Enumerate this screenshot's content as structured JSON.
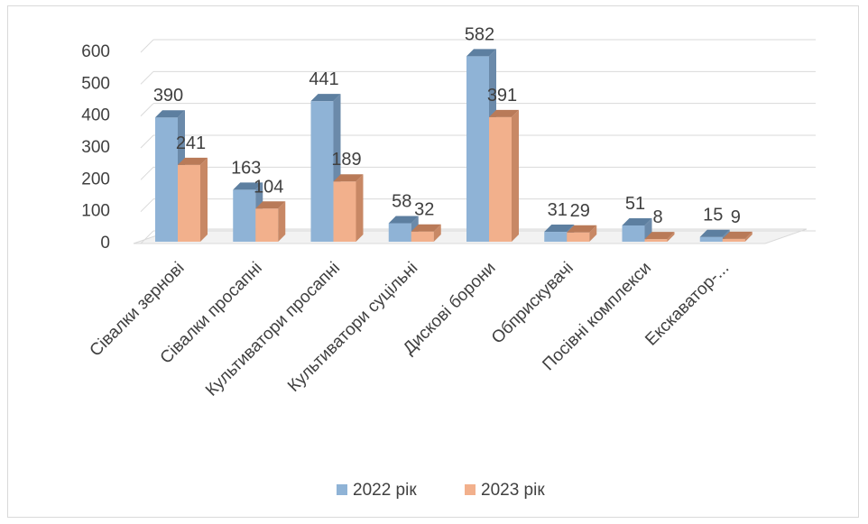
{
  "chart_data": {
    "type": "bar",
    "style": "3d-clustered-column",
    "categories": [
      "Сівалки зернові",
      "Сівалки просапні",
      "Культиватори просапні",
      "Культиватори суцільні",
      "Дискові борони",
      "Обприскувачі",
      "Посівні комплекси",
      "Екскаватор-..."
    ],
    "series": [
      {
        "name": "2022 рік",
        "values": [
          390,
          163,
          441,
          58,
          582,
          31,
          51,
          15
        ],
        "color": "#8fb3d6",
        "side_color": "#6b8aaa",
        "top_color": "#5d7fa0"
      },
      {
        "name": "2023 рік",
        "values": [
          241,
          104,
          189,
          32,
          391,
          29,
          8,
          9
        ],
        "color": "#f2b08c",
        "side_color": "#c88865",
        "top_color": "#b97a58"
      }
    ],
    "yticks": [
      0,
      100,
      200,
      300,
      400,
      500,
      600
    ],
    "ylim": [
      0,
      600
    ],
    "grid": true,
    "legend_position": "bottom",
    "gridline_color": "#d9d9d9"
  }
}
